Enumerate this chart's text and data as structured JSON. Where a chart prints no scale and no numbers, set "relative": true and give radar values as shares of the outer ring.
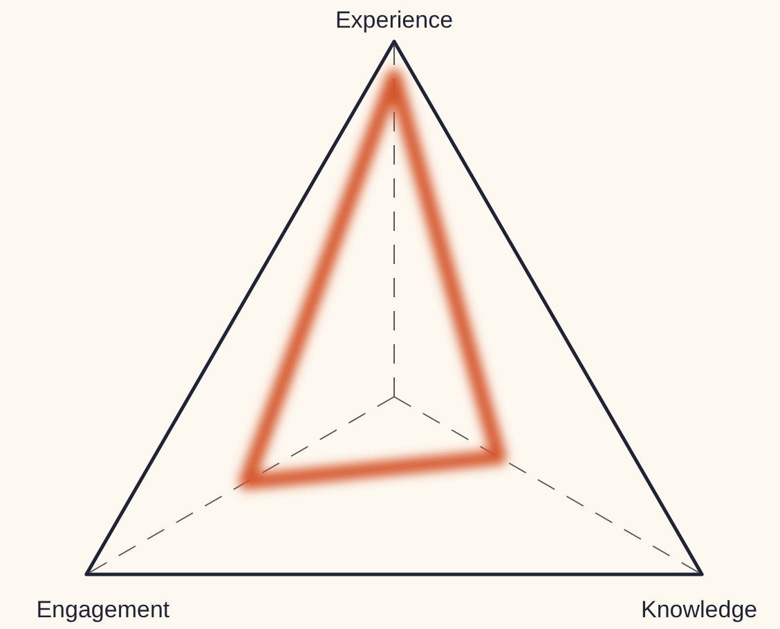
{
  "chart_data": {
    "type": "radar",
    "relative": true,
    "categories": [
      "Experience",
      "Knowledge",
      "Engagement"
    ],
    "grid": true,
    "line_style": "solid",
    "marker": "none",
    "series": [
      {
        "color": "#d4552a",
        "values": [
          0.9,
          0.34,
          0.48
        ]
      }
    ]
  }
}
